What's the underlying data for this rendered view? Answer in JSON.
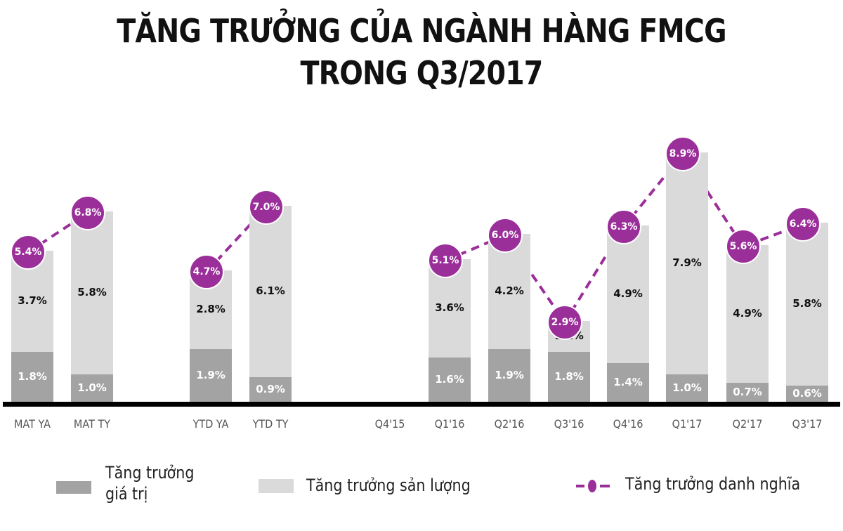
{
  "title": {
    "line1": "TĂNG TRƯỞNG CỦA NGÀNH HÀNG FMCG",
    "line2": "TRONG Q3/2017"
  },
  "colors": {
    "value_growth": "#a3a3a3",
    "volume_growth": "#dadada",
    "nominal_growth": "#9b2f9a",
    "axis": "#000000"
  },
  "chart_data": {
    "type": "bar",
    "title": "TĂNG TRƯỞNG CỦA NGÀNH HÀNG FMCG TRONG Q3/2017",
    "xlabel": "",
    "ylabel": "",
    "categories": [
      "MAT YA",
      "MAT TY",
      "YTD YA",
      "YTD TY",
      "Q4'15",
      "Q1'16",
      "Q2'16",
      "Q3'16",
      "Q4'16",
      "Q1'17",
      "Q2'17",
      "Q3'17"
    ],
    "stacked": true,
    "grid": false,
    "legend_position": "bottom",
    "series": [
      {
        "name": "Tăng trưởng giá trị",
        "type": "bar",
        "values": [
          1.8,
          1.0,
          1.9,
          0.9,
          null,
          1.6,
          1.9,
          1.8,
          1.4,
          1.0,
          0.7,
          0.6
        ]
      },
      {
        "name": "Tăng trưởng sản lượng",
        "type": "bar",
        "values": [
          3.7,
          5.8,
          2.8,
          6.1,
          null,
          3.6,
          4.2,
          1.1,
          4.9,
          7.9,
          4.9,
          5.8
        ]
      },
      {
        "name": "Tăng trưởng danh nghĩa",
        "type": "line",
        "style": "dashed",
        "values": [
          5.4,
          6.8,
          4.7,
          7.0,
          null,
          5.1,
          6.0,
          2.9,
          6.3,
          8.9,
          5.6,
          6.4
        ]
      }
    ],
    "bars": [
      {
        "label": "MAT YA",
        "value": "1.8%",
        "volume": "3.7%",
        "nominal": "5.4%"
      },
      {
        "label": "MAT TY",
        "value": "1.0%",
        "volume": "5.8%",
        "nominal": "6.8%"
      },
      {
        "label": "YTD YA",
        "value": "1.9%",
        "volume": "2.8%",
        "nominal": "4.7%"
      },
      {
        "label": "YTD TY",
        "value": "0.9%",
        "volume": "6.1%",
        "nominal": "7.0%"
      },
      {
        "label": "Q4'15"
      },
      {
        "label": "Q1'16",
        "value": "1.6%",
        "volume": "3.6%",
        "nominal": "5.1%"
      },
      {
        "label": "Q2'16",
        "value": "1.9%",
        "volume": "4.2%",
        "nominal": "6.0%"
      },
      {
        "label": "Q3'16",
        "value": "1.8%",
        "volume": "1.1%",
        "nominal": "2.9%"
      },
      {
        "label": "Q4'16",
        "value": "1.4%",
        "volume": "4.9%",
        "nominal": "6.3%"
      },
      {
        "label": "Q1'17",
        "value": "1.0%",
        "volume": "7.9%",
        "nominal": "8.9%"
      },
      {
        "label": "Q2'17",
        "value": "0.7%",
        "volume": "4.9%",
        "nominal": "5.6%"
      },
      {
        "label": "Q3'17",
        "value": "0.6%",
        "volume": "5.8%",
        "nominal": "6.4%"
      }
    ]
  },
  "legend": {
    "value_growth_line1": "Tăng trưởng",
    "value_growth_line2": "giá trị",
    "volume_growth": "Tăng trưởng sản lượng",
    "nominal_growth": "Tăng trưởng danh nghĩa"
  }
}
